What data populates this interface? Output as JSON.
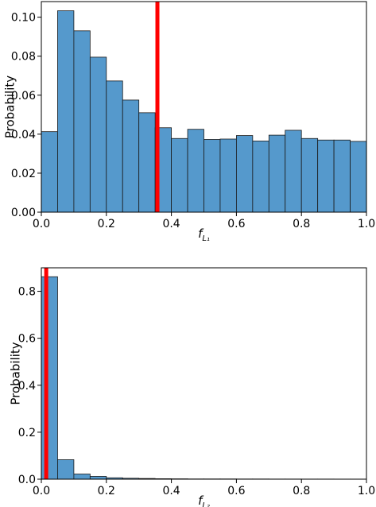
{
  "colors": {
    "bar_fill": "#5599cc",
    "bar_edge": "#1a1a1a",
    "vline": "#ff0000",
    "axes": "#000000"
  },
  "chart_data": [
    {
      "type": "bar",
      "title": "",
      "xlabel": "f",
      "xlabel_sub": "L₁",
      "ylabel": "Probability",
      "xlim": [
        0,
        1.0
      ],
      "ylim": [
        0,
        0.108
      ],
      "xticks": [
        "0.0",
        "0.2",
        "0.4",
        "0.6",
        "0.8",
        "1.0"
      ],
      "yticks": [
        "0.00",
        "0.02",
        "0.04",
        "0.06",
        "0.08",
        "0.10"
      ],
      "bin_width": 0.05,
      "bin_starts": [
        0,
        0.05,
        0.1,
        0.15,
        0.2,
        0.25,
        0.3,
        0.35,
        0.4,
        0.45,
        0.5,
        0.55,
        0.6,
        0.65,
        0.7,
        0.75,
        0.8,
        0.85,
        0.9,
        0.95
      ],
      "values": [
        0.0413,
        0.1033,
        0.093,
        0.0795,
        0.0673,
        0.0575,
        0.051,
        0.0433,
        0.0378,
        0.0425,
        0.0373,
        0.0375,
        0.0393,
        0.0365,
        0.0395,
        0.042,
        0.0378,
        0.037,
        0.037,
        0.0363
      ],
      "vline_x": 0.357
    },
    {
      "type": "bar",
      "title": "",
      "xlabel": "f",
      "xlabel_sub": "L₂",
      "ylabel": "Probability",
      "xlim": [
        0,
        1.0
      ],
      "ylim": [
        0,
        0.9
      ],
      "xticks": [
        "0.0",
        "0.2",
        "0.4",
        "0.6",
        "0.8",
        "1.0"
      ],
      "yticks": [
        "0.0",
        "0.2",
        "0.4",
        "0.6",
        "0.8"
      ],
      "bin_width": 0.05,
      "bin_starts": [
        0,
        0.05,
        0.1,
        0.15,
        0.2,
        0.25,
        0.3,
        0.35,
        0.4,
        0.45,
        0.5,
        0.55,
        0.6,
        0.65,
        0.7,
        0.75,
        0.8,
        0.85,
        0.9,
        0.95
      ],
      "values": [
        0.862,
        0.083,
        0.022,
        0.012,
        0.006,
        0.004,
        0.003,
        0.002,
        0.0015,
        0.001,
        0.001,
        0.001,
        0.0008,
        0.0008,
        0.0006,
        0.0006,
        0.0005,
        0.0005,
        0.0004,
        0.0004
      ],
      "vline_x": 0.015
    }
  ]
}
